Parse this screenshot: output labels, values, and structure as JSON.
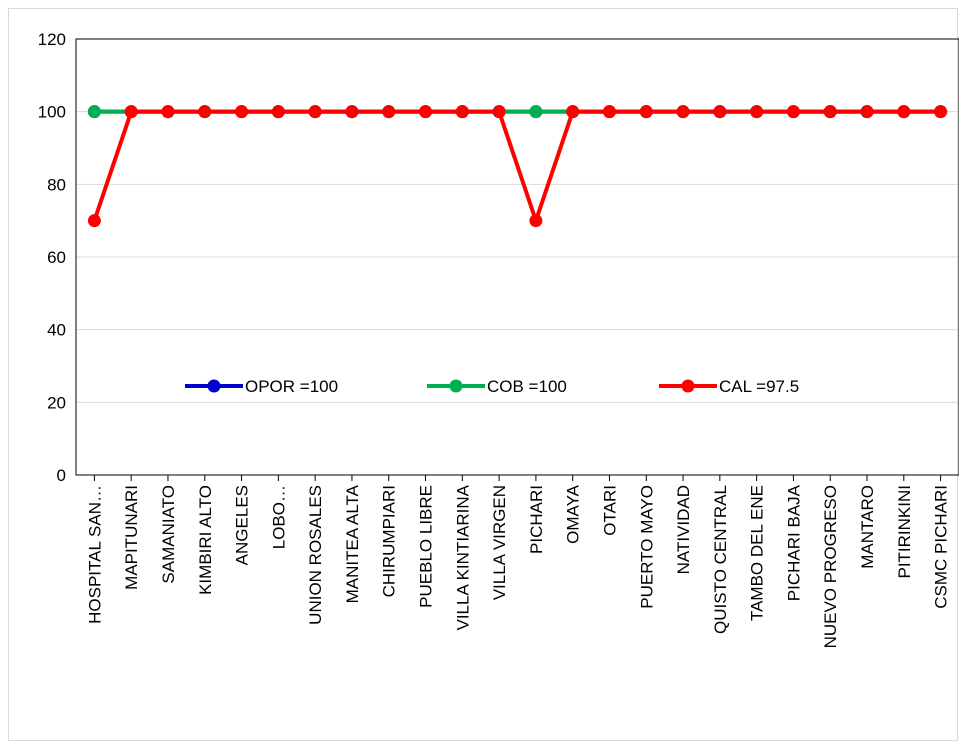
{
  "chart_data": {
    "type": "line",
    "categories": [
      "HOSPITAL SAN…",
      "MAPITUNARI",
      "SAMANIATO",
      "KIMBIRI ALTO",
      "ANGELES",
      "LOBO…",
      "UNION ROSALES",
      "MANITEA ALTA",
      "CHIRUMPIARI",
      "PUEBLO LIBRE",
      "VILLA KINTIARINA",
      "VILLA VIRGEN",
      "PICHARI",
      "OMAYA",
      "OTARI",
      "PUERTO MAYO",
      "NATIVIDAD",
      "QUISTO CENTRAL",
      "TAMBO DEL ENE",
      "PICHARI BAJA",
      "NUEVO PROGRESO",
      "MANTARO",
      "PITIRINKINI",
      "CSMC PICHARI"
    ],
    "series": [
      {
        "name": "OPOR =100",
        "color": "#0000cc",
        "values": [
          100,
          100,
          100,
          100,
          100,
          100,
          100,
          100,
          100,
          100,
          100,
          100,
          100,
          100,
          100,
          100,
          100,
          100,
          100,
          100,
          100,
          100,
          100,
          100
        ]
      },
      {
        "name": "COB =100",
        "color": "#00b050",
        "values": [
          100,
          100,
          100,
          100,
          100,
          100,
          100,
          100,
          100,
          100,
          100,
          100,
          100,
          100,
          100,
          100,
          100,
          100,
          100,
          100,
          100,
          100,
          100,
          100
        ]
      },
      {
        "name": "CAL =97.5",
        "color": "#ff0000",
        "values": [
          70,
          100,
          100,
          100,
          100,
          100,
          100,
          100,
          100,
          100,
          100,
          100,
          70,
          100,
          100,
          100,
          100,
          100,
          100,
          100,
          100,
          100,
          100,
          100
        ]
      }
    ],
    "yticks": [
      0,
      20,
      40,
      60,
      80,
      100,
      120
    ],
    "ylim": [
      0,
      120
    ],
    "grid": true,
    "legend_position": "inside-bottom"
  }
}
